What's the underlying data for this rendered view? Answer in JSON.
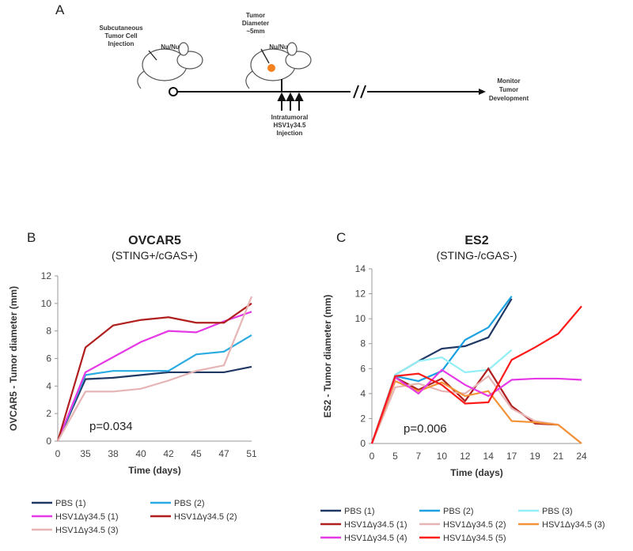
{
  "panel_labels": [
    "A",
    "B",
    "C"
  ],
  "schematic": {
    "injection_label": [
      "Subcutaneous",
      "Tumor Cell",
      "Injection"
    ],
    "mouse_label_1": "Nu/Nu",
    "tumor_label": [
      "Tumor",
      "Diameter",
      "~5mm"
    ],
    "mouse_label_2": "Nu/Nu",
    "treatment_label": [
      "Intratumoral",
      "HSV1γ34.5",
      "Injection"
    ],
    "monitor_label": [
      "Monitor",
      "Tumor",
      "Development"
    ]
  },
  "chart_data": [
    {
      "type": "line",
      "title": "OVCAR5",
      "subtitle": "(STING+/cGAS+)",
      "x_label": "Time  (days)",
      "y_label": "OVCAR5 - Tumor diameter (mm)",
      "annotation": "p=0.034",
      "categories": [
        "0",
        "35",
        "38",
        "40",
        "42",
        "45",
        "47",
        "51"
      ],
      "ylim": [
        0,
        12
      ],
      "yticks": [
        0,
        2,
        4,
        6,
        8,
        10,
        12
      ],
      "series": [
        {
          "name": "PBS (1)",
          "color": "#1f3864",
          "values": [
            0,
            4.5,
            4.6,
            4.8,
            5.0,
            5.0,
            5.0,
            5.4
          ]
        },
        {
          "name": "PBS (2)",
          "color": "#29abe2",
          "values": [
            0,
            4.8,
            5.1,
            5.1,
            5.1,
            6.3,
            6.5,
            7.7
          ]
        },
        {
          "name": "HSV1Δγ34.5 (1)",
          "color": "#e639e6",
          "values": [
            0,
            5.0,
            6.1,
            7.2,
            8.0,
            7.9,
            8.7,
            9.4
          ]
        },
        {
          "name": "HSV1Δγ34.5 (2)",
          "color": "#b01e1e",
          "values": [
            0,
            6.8,
            8.4,
            8.8,
            9.0,
            8.6,
            8.6,
            10.0
          ]
        },
        {
          "name": "HSV1Δγ34.5 (3)",
          "color": "#e6b4b4",
          "values": [
            0,
            3.6,
            3.6,
            3.8,
            4.4,
            5.1,
            5.5,
            10.5
          ]
        }
      ]
    },
    {
      "type": "line",
      "title": "ES2",
      "subtitle": "(STING-/cGAS-)",
      "x_label": "Time  (days)",
      "y_label": "ES2 - Tumor diameter (mm)",
      "annotation": "p=0.006",
      "categories": [
        "0",
        "5",
        "7",
        "10",
        "12",
        "14",
        "17",
        "19",
        "21",
        "24"
      ],
      "ylim": [
        0,
        14
      ],
      "yticks": [
        0,
        2,
        4,
        6,
        8,
        10,
        12,
        14
      ],
      "series": [
        {
          "name": "PBS (1)",
          "color": "#1f3864",
          "values": [
            0,
            5.5,
            6.6,
            7.6,
            7.8,
            8.5,
            11.6,
            null,
            null,
            null
          ]
        },
        {
          "name": "PBS (2)",
          "color": "#1ba1e2",
          "values": [
            0,
            5.4,
            5.0,
            5.8,
            8.3,
            9.3,
            11.8,
            null,
            null,
            null
          ]
        },
        {
          "name": "PBS (3)",
          "color": "#93eef5",
          "values": [
            0,
            5.5,
            6.6,
            6.9,
            5.7,
            5.9,
            7.5,
            null,
            null,
            null
          ]
        },
        {
          "name": "HSV1Δγ34.5 (1)",
          "color": "#b01e1e",
          "values": [
            0,
            5.3,
            4.3,
            5.2,
            3.4,
            6.0,
            3.0,
            1.6,
            1.5,
            null
          ]
        },
        {
          "name": "HSV1Δγ34.5 (2)",
          "color": "#e6b4b4",
          "values": [
            0,
            4.5,
            4.8,
            4.2,
            4.0,
            5.4,
            2.8,
            1.8,
            1.5,
            0
          ]
        },
        {
          "name": "HSV1Δγ34.5 (3)",
          "color": "#f39237",
          "values": [
            0,
            5.0,
            4.2,
            4.9,
            3.8,
            4.2,
            1.8,
            1.7,
            1.5,
            0
          ]
        },
        {
          "name": "HSV1Δγ34.5 (4)",
          "color": "#e639e6",
          "values": [
            0,
            5.3,
            4.0,
            5.9,
            4.7,
            3.8,
            5.1,
            5.2,
            5.2,
            5.1
          ]
        },
        {
          "name": "HSV1Δγ34.5 (5)",
          "color": "#ff1a1a",
          "values": [
            0,
            5.4,
            5.6,
            4.7,
            3.2,
            3.3,
            6.7,
            7.7,
            8.8,
            11.0
          ]
        }
      ]
    }
  ]
}
